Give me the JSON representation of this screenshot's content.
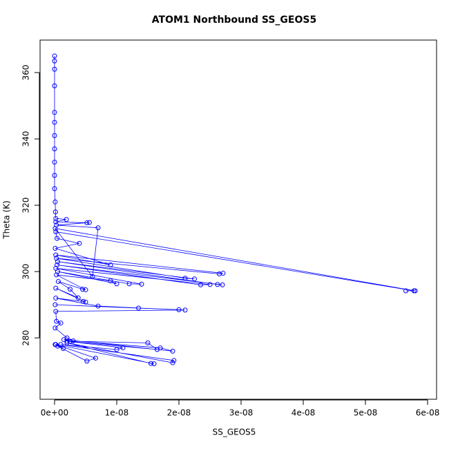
{
  "chart_data": {
    "type": "line",
    "markers": true,
    "title": "ATOM1 Northbound SS_GEOS5",
    "x_label": "SS_GEOS5",
    "y_label": "Theta (K)",
    "color": "#0000ff",
    "x": [
      0,
      0,
      0,
      0,
      0,
      0,
      0,
      0,
      0,
      0,
      0,
      1e-10,
      1.5e-10,
      2e-10,
      1.9e-09,
      2e-10,
      5.2e-09,
      5.6e-09,
      3e-10,
      7e-09,
      6.1e-09,
      1e-10,
      5.8e-08,
      5.65e-08,
      5.78e-08,
      2e-10,
      4e-10,
      4e-09,
      1e-10,
      9e-09,
      2e-10,
      2.71e-08,
      2.65e-08,
      3e-10,
      2.1e-08,
      2.25e-08,
      5e-10,
      2.62e-08,
      2.7e-08,
      4e-10,
      2.35e-08,
      2.5e-08,
      2e-10,
      1.4e-08,
      1.2e-08,
      5e-10,
      1e-08,
      9e-09,
      3e-10,
      5e-09,
      4.5e-09,
      6e-10,
      2.5e-09,
      3.8e-09,
      2e-10,
      5e-09,
      4.6e-09,
      2e-10,
      7e-09,
      1.35e-08,
      1e-10,
      2e-08,
      2.1e-08,
      2e-10,
      3e-10,
      1e-09,
      1e-10,
      2e-09,
      3e-09,
      1.7e-08,
      1.9e-08,
      1.5e-09,
      2.5e-09,
      1.5e-08,
      1.65e-08,
      2e-09,
      1.1e-08,
      1e-08,
      1e-09,
      1.92e-08,
      1.9e-08,
      2e-09,
      1.55e-08,
      1.6e-08,
      2e-10,
      6.6e-09,
      5.2e-09,
      5e-10,
      1.4e-09,
      1e-10
    ],
    "values": [
      365,
      363.5,
      361,
      356,
      348,
      345,
      341,
      337,
      333,
      329,
      325,
      321,
      318,
      316,
      315.7,
      315,
      314.7,
      314.8,
      314,
      313.2,
      298.5,
      313,
      294.2,
      294.2,
      294.2,
      312,
      310,
      308.5,
      307,
      302,
      305,
      299.5,
      299.3,
      304,
      298,
      297.8,
      303,
      296.1,
      296,
      302,
      296,
      296.1,
      301,
      296.2,
      296.3,
      300,
      296.3,
      297.2,
      299,
      294.5,
      294.7,
      297,
      294.7,
      292.1,
      295,
      290.8,
      291,
      292,
      289.6,
      289,
      290,
      288.5,
      288.4,
      288,
      285,
      284.5,
      283,
      280,
      279.1,
      277,
      276,
      279.5,
      279,
      278.5,
      276.5,
      279,
      277,
      276.5,
      278,
      273.2,
      272.5,
      278.5,
      272.3,
      272.2,
      278,
      273.9,
      273,
      277.5,
      276.8,
      278
    ],
    "xlim": [
      -2.33e-09,
      6.144e-08
    ],
    "ylim": [
      261.5,
      369.8
    ],
    "xticks": [
      {
        "value": 0,
        "label": "0e+00"
      },
      {
        "value": 1e-08,
        "label": "1e-08"
      },
      {
        "value": 2e-08,
        "label": "2e-08"
      },
      {
        "value": 3e-08,
        "label": "3e-08"
      },
      {
        "value": 4e-08,
        "label": "4e-08"
      },
      {
        "value": 5e-08,
        "label": "5e-08"
      },
      {
        "value": 6e-08,
        "label": "6e-08"
      }
    ],
    "yticks": [
      280,
      300,
      320,
      340,
      360
    ]
  }
}
